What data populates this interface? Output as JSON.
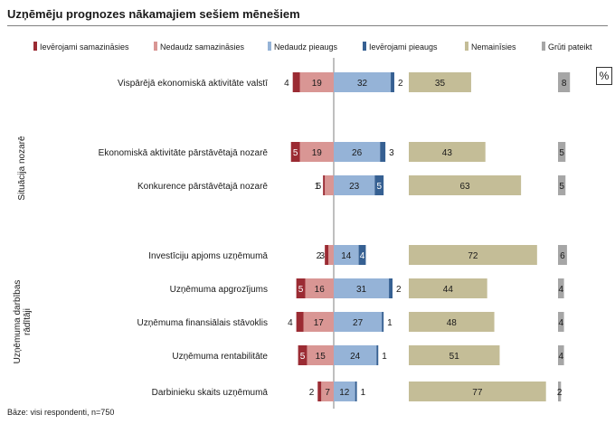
{
  "title": "Uzņēmēju prognozes nākamajiem sešiem mēnešiem",
  "footnote": "Bāze: visi respondenti, n=750",
  "unit": "%",
  "chart_data": {
    "type": "bar",
    "legend_position": "top",
    "series_legend": [
      {
        "name": "Ievērojami samazināsies",
        "color": "#9b2b33"
      },
      {
        "name": "Nedaudz samazināsies",
        "color": "#d99694"
      },
      {
        "name": "Nedaudz pieaugs",
        "color": "#95b3d7"
      },
      {
        "name": "Ievērojami pieaugs",
        "color": "#366092"
      },
      {
        "name": "Nemainīsies",
        "color": "#c4bd97"
      },
      {
        "name": "Grūti pateikt",
        "color": "#a6a6a6"
      }
    ],
    "groups": [
      {
        "label": "Situācija nozarē",
        "rows": [
          1,
          2
        ]
      },
      {
        "label": "Uzņēmuma darbības rādītāji",
        "rows": [
          3,
          4,
          5,
          6,
          7
        ]
      }
    ],
    "categories": [
      "Vispārējā ekonomiskā aktivitāte valstī",
      "Ekonomiskā aktivitāte pārstāvētajā nozarē",
      "Konkurence pārstāvētajā nozarē",
      "Investīciju apjoms uzņēmumā",
      "Uzņēmuma apgrozījums",
      "Uzņēmuma finansiālais stāvoklis",
      "Uzņēmuma rentabilitāte",
      "Darbinieku skaits uzņēmumā"
    ],
    "series": [
      {
        "name": "Ievērojami samazināsies",
        "values": [
          4,
          5,
          1,
          2,
          5,
          4,
          5,
          2
        ]
      },
      {
        "name": "Nedaudz samazināsies",
        "values": [
          19,
          19,
          5,
          3,
          16,
          17,
          15,
          7
        ]
      },
      {
        "name": "Nedaudz pieaugs",
        "values": [
          32,
          26,
          23,
          14,
          31,
          27,
          24,
          12
        ]
      },
      {
        "name": "Ievērojami pieaugs",
        "values": [
          2,
          3,
          5,
          4,
          2,
          1,
          1,
          1
        ]
      },
      {
        "name": "Nemainīsies",
        "values": [
          35,
          43,
          63,
          72,
          44,
          48,
          51,
          77
        ]
      },
      {
        "name": "Grūti pateikt",
        "values": [
          8,
          5,
          5,
          6,
          4,
          4,
          4,
          2
        ]
      }
    ]
  }
}
